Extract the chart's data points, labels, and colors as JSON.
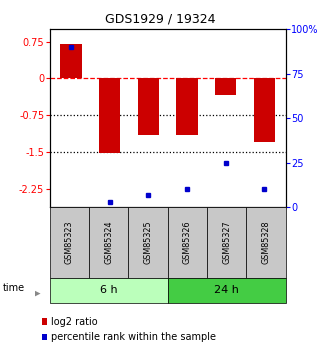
{
  "title": "GDS1929 / 19324",
  "samples": [
    "GSM85323",
    "GSM85324",
    "GSM85325",
    "GSM85326",
    "GSM85327",
    "GSM85328"
  ],
  "log2_ratio": [
    0.7,
    -1.53,
    -1.15,
    -1.15,
    -0.35,
    -1.3
  ],
  "percentile_rank": [
    90,
    3,
    7,
    10,
    25,
    10
  ],
  "ylim_left": [
    -2.625,
    1.0
  ],
  "ylim_right": [
    0,
    100
  ],
  "left_ticks": [
    0.75,
    0,
    -0.75,
    -1.5,
    -2.25
  ],
  "right_ticks": [
    100,
    75,
    50,
    25,
    0
  ],
  "bar_color": "#cc0000",
  "dot_color": "#0000cc",
  "group1_color": "#bbffbb",
  "group2_color": "#44cc44",
  "sample_box_color": "#c8c8c8",
  "legend_log2": "log2 ratio",
  "legend_pct": "percentile rank within the sample",
  "bar_width": 0.55
}
